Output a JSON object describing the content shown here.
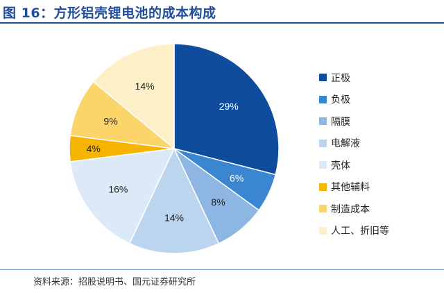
{
  "title": "图 16：方形铝壳锂电池的成本构成",
  "source": "资料来源：招股说明书、国元证券研究所",
  "chart_data": {
    "type": "pie",
    "start_angle_deg": 0,
    "direction": "clockwise",
    "legend_position": "right",
    "slices": [
      {
        "label": "正极",
        "value": 29,
        "display": "29%",
        "color": "#0f4c9e",
        "text_color": "#ffffff"
      },
      {
        "label": "负极",
        "value": 6,
        "display": "6%",
        "color": "#3a86d0",
        "text_color": "#ffffff"
      },
      {
        "label": "隔膜",
        "value": 8,
        "display": "8%",
        "color": "#8db7e2",
        "text_color": "#222222"
      },
      {
        "label": "电解液",
        "value": 14,
        "display": "14%",
        "color": "#bcd5ee",
        "text_color": "#222222"
      },
      {
        "label": "壳体",
        "value": 16,
        "display": "16%",
        "color": "#dce9f6",
        "text_color": "#222222"
      },
      {
        "label": "其他辅料",
        "value": 4,
        "display": "4%",
        "color": "#f5b400",
        "text_color": "#222222"
      },
      {
        "label": "制造成本",
        "value": 9,
        "display": "9%",
        "color": "#fbd46a",
        "text_color": "#222222"
      },
      {
        "label": "人工、折旧等",
        "value": 14,
        "display": "14%",
        "color": "#fdefc8",
        "text_color": "#222222"
      }
    ]
  }
}
